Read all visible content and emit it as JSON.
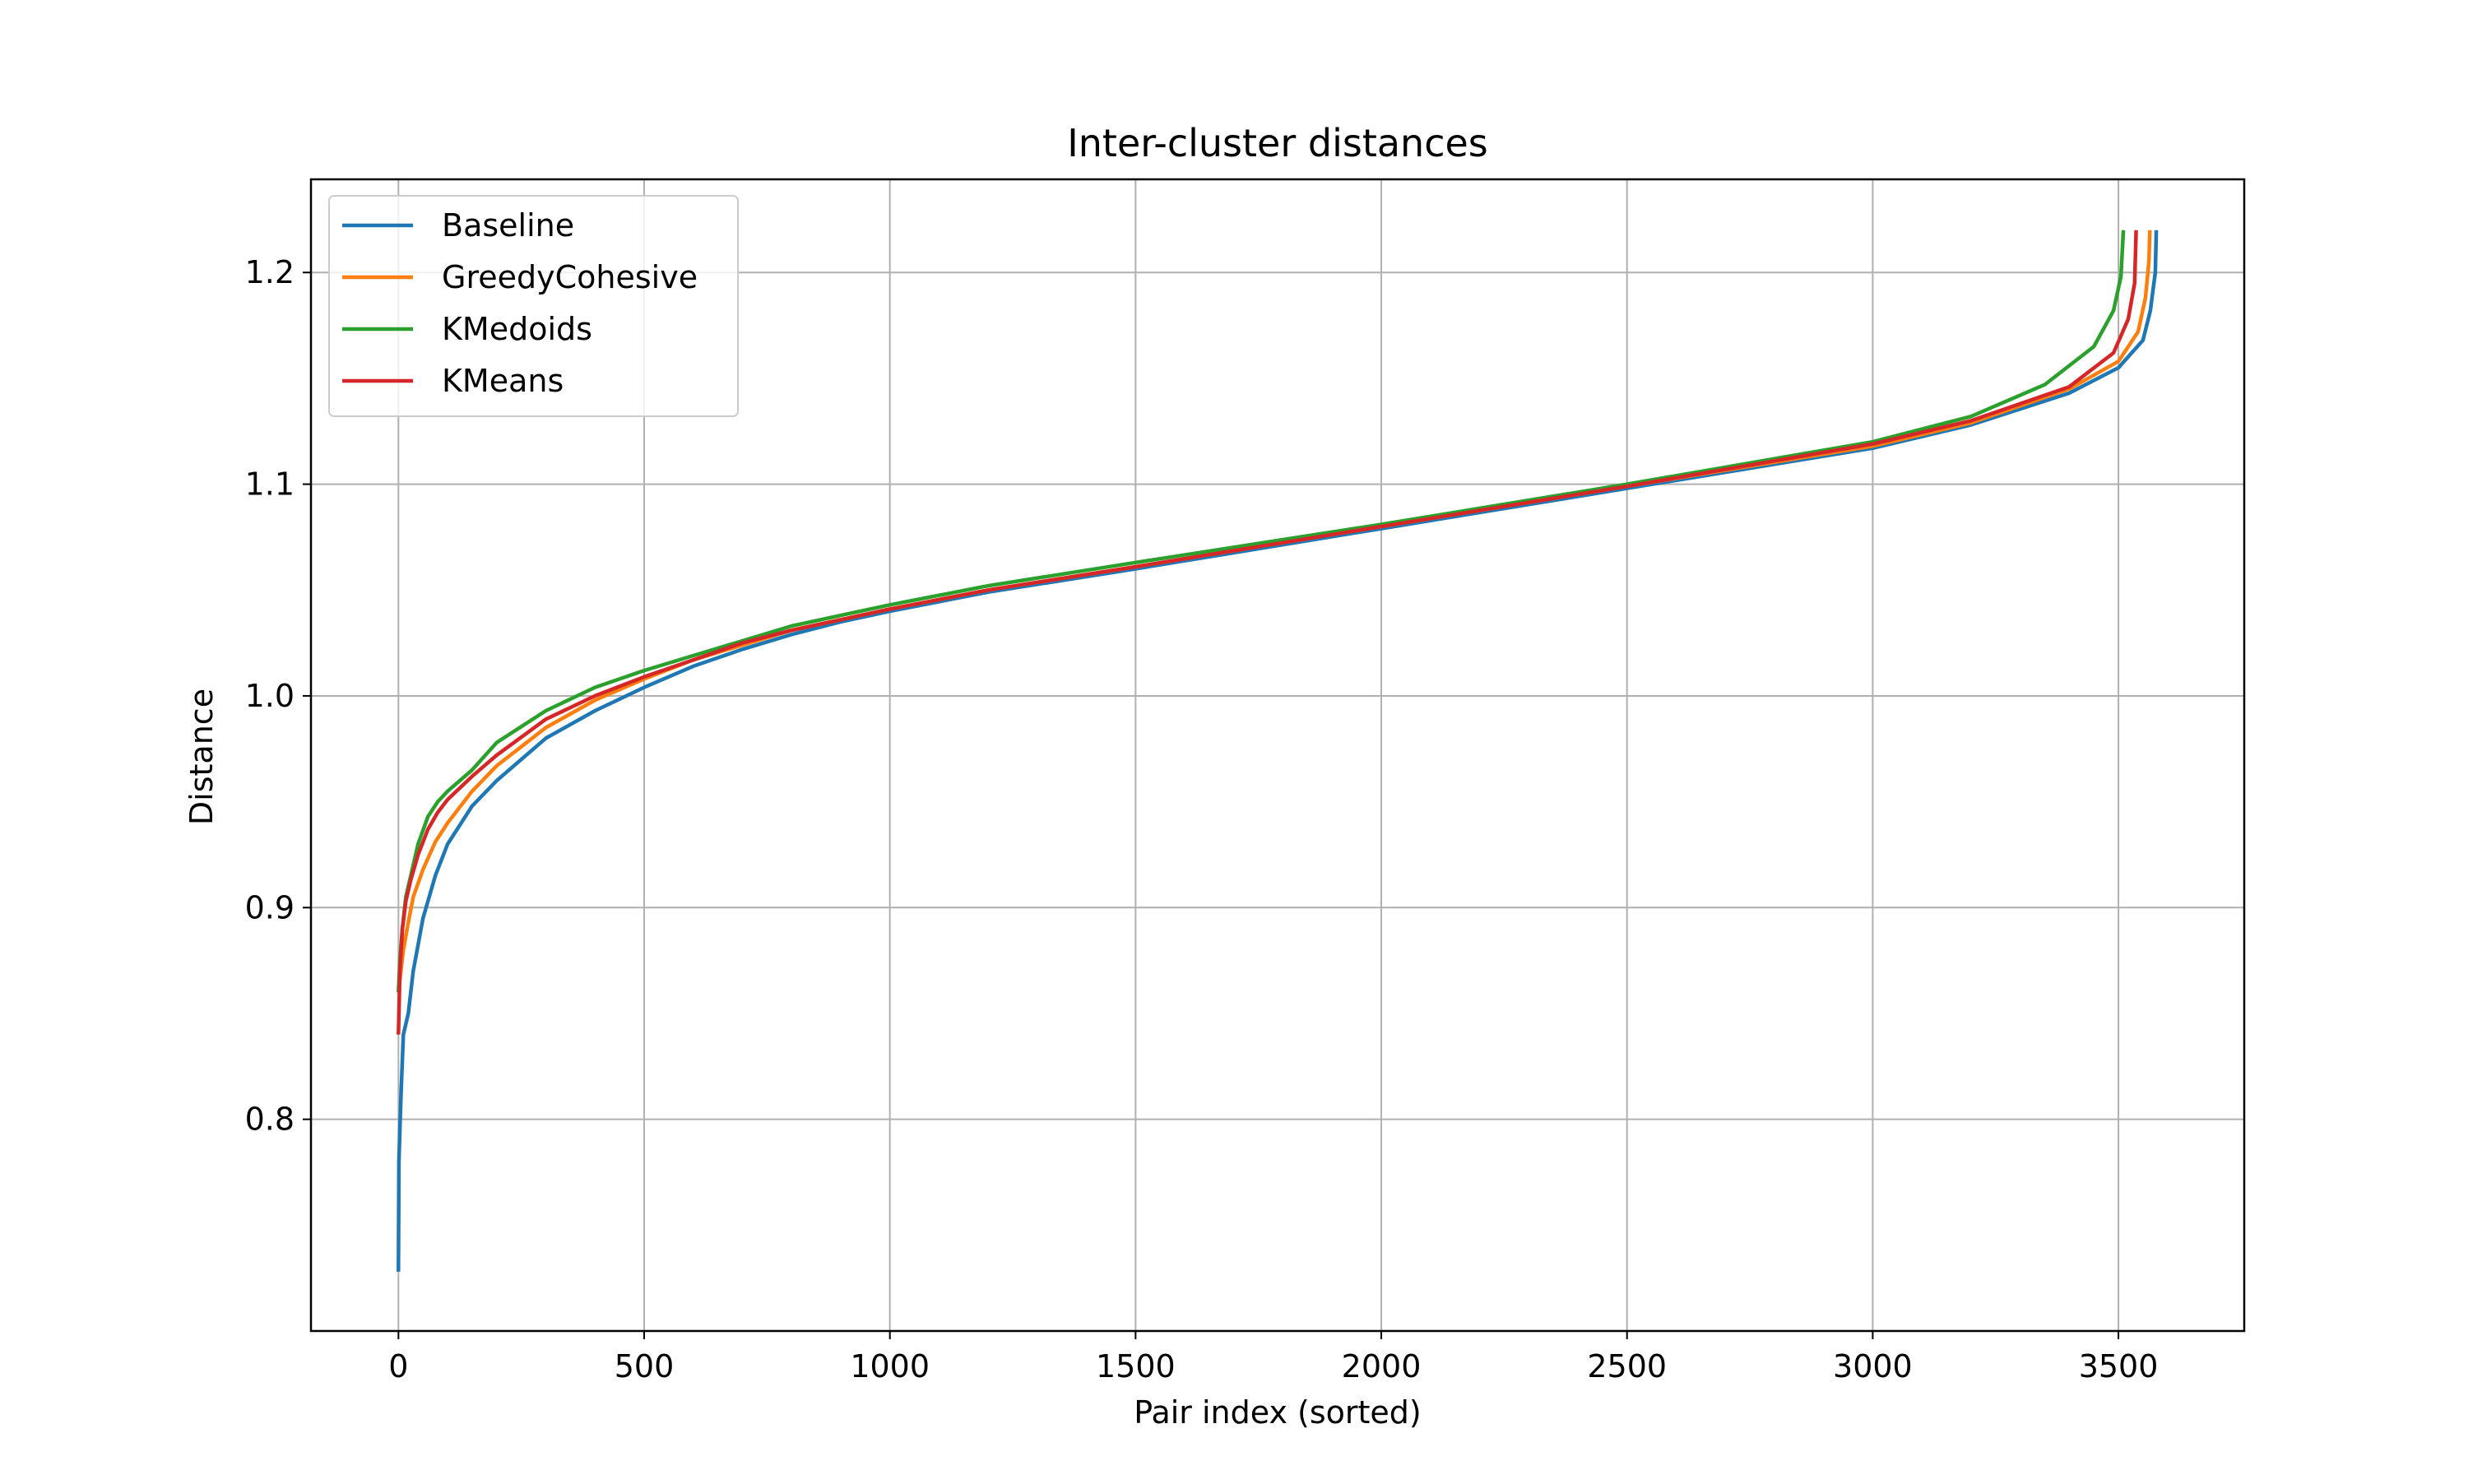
{
  "chart_data": {
    "type": "line",
    "title": "Inter-cluster distances",
    "xlabel": "Pair index (sorted)",
    "ylabel": "Distance",
    "xlim": [
      -178,
      3756
    ],
    "ylim": [
      0.7,
      1.244
    ],
    "xticks": [
      0,
      500,
      1000,
      1500,
      2000,
      2500,
      3000,
      3500
    ],
    "xtick_labels": [
      "0",
      "500",
      "1000",
      "1500",
      "2000",
      "2500",
      "3000",
      "3500"
    ],
    "yticks": [
      0.8,
      0.9,
      1.0,
      1.1,
      1.2
    ],
    "ytick_labels": [
      "0.8",
      "0.9",
      "1.0",
      "1.1",
      "1.2"
    ],
    "grid": true,
    "legend_position": "top-left",
    "series": [
      {
        "name": "Baseline",
        "color": "#1f77b4",
        "x": [
          0,
          1,
          5,
          10,
          20,
          30,
          50,
          75,
          100,
          150,
          200,
          300,
          400,
          500,
          600,
          700,
          800,
          900,
          1000,
          1200,
          1500,
          2000,
          2500,
          3000,
          3200,
          3400,
          3500,
          3550,
          3565,
          3575,
          3577
        ],
        "y": [
          0.728,
          0.78,
          0.81,
          0.84,
          0.85,
          0.87,
          0.895,
          0.915,
          0.93,
          0.948,
          0.96,
          0.98,
          0.993,
          1.004,
          1.014,
          1.022,
          1.029,
          1.035,
          1.04,
          1.049,
          1.06,
          1.079,
          1.098,
          1.117,
          1.128,
          1.143,
          1.155,
          1.168,
          1.182,
          1.2,
          1.22
        ]
      },
      {
        "name": "GreedyCohesive",
        "color": "#ff7f0e",
        "x": [
          0,
          5,
          10,
          20,
          30,
          50,
          75,
          100,
          150,
          200,
          300,
          400,
          500,
          600,
          700,
          800,
          900,
          1000,
          1200,
          1500,
          2000,
          2500,
          3000,
          3200,
          3400,
          3500,
          3540,
          3555,
          3562,
          3564
        ],
        "y": [
          0.86,
          0.87,
          0.88,
          0.893,
          0.905,
          0.918,
          0.931,
          0.94,
          0.955,
          0.967,
          0.985,
          0.998,
          1.008,
          1.017,
          1.024,
          1.031,
          1.036,
          1.041,
          1.05,
          1.061,
          1.08,
          1.099,
          1.118,
          1.129,
          1.145,
          1.158,
          1.172,
          1.188,
          1.205,
          1.22
        ]
      },
      {
        "name": "KMedoids",
        "color": "#2ca02c",
        "x": [
          0,
          3,
          8,
          15,
          25,
          40,
          60,
          80,
          100,
          150,
          200,
          300,
          400,
          500,
          600,
          700,
          800,
          900,
          1000,
          1200,
          1500,
          2000,
          2500,
          3000,
          3200,
          3350,
          3450,
          3490,
          3505,
          3510
        ],
        "y": [
          0.86,
          0.875,
          0.89,
          0.905,
          0.915,
          0.93,
          0.943,
          0.95,
          0.955,
          0.965,
          0.978,
          0.993,
          1.004,
          1.012,
          1.019,
          1.026,
          1.033,
          1.038,
          1.043,
          1.052,
          1.063,
          1.081,
          1.1,
          1.12,
          1.132,
          1.147,
          1.165,
          1.182,
          1.198,
          1.22
        ]
      },
      {
        "name": "KMeans",
        "color": "#d62728",
        "x": [
          0,
          3,
          8,
          15,
          25,
          40,
          60,
          80,
          100,
          150,
          200,
          300,
          400,
          500,
          600,
          700,
          800,
          900,
          1000,
          1200,
          1500,
          2000,
          2500,
          3000,
          3200,
          3400,
          3490,
          3520,
          3533,
          3536
        ],
        "y": [
          0.84,
          0.87,
          0.89,
          0.903,
          0.913,
          0.925,
          0.937,
          0.945,
          0.951,
          0.962,
          0.972,
          0.989,
          1.0,
          1.009,
          1.017,
          1.025,
          1.031,
          1.036,
          1.041,
          1.05,
          1.061,
          1.08,
          1.099,
          1.119,
          1.13,
          1.146,
          1.162,
          1.178,
          1.195,
          1.22
        ]
      }
    ]
  }
}
